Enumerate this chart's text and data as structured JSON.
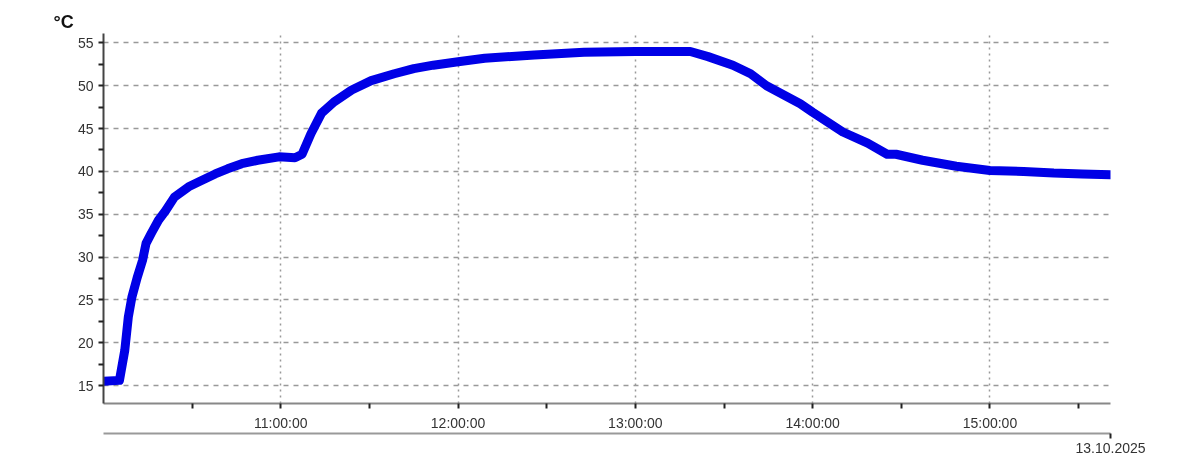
{
  "chart_data": {
    "type": "line",
    "ylabel": "°C",
    "annotations": [
      "13.10.2025"
    ],
    "x": [
      10.0,
      10.09,
      10.12,
      10.14,
      10.16,
      10.19,
      10.22,
      10.24,
      10.27,
      10.31,
      10.35,
      10.4,
      10.48,
      10.55,
      10.63,
      10.7,
      10.78,
      10.87,
      10.99,
      11.08,
      11.12,
      11.17,
      11.23,
      11.3,
      11.4,
      11.51,
      11.64,
      11.75,
      11.86,
      12.0,
      12.15,
      12.43,
      12.71,
      13.0,
      13.31,
      13.41,
      13.55,
      13.65,
      13.74,
      13.93,
      14.0,
      14.17,
      14.31,
      14.42,
      14.47,
      14.62,
      14.81,
      15.0,
      15.19,
      15.36,
      15.52,
      15.68
    ],
    "values": [
      15.5,
      15.6,
      19.1,
      23.0,
      25.3,
      27.6,
      29.6,
      31.6,
      32.8,
      34.3,
      35.4,
      37.0,
      38.2,
      38.9,
      39.7,
      40.3,
      40.9,
      41.3,
      41.7,
      41.6,
      42.0,
      44.4,
      46.8,
      48.1,
      49.5,
      50.6,
      51.4,
      52.0,
      52.4,
      52.8,
      53.2,
      53.6,
      53.9,
      54.0,
      54.0,
      53.4,
      52.4,
      51.4,
      50.0,
      47.9,
      46.9,
      44.6,
      43.3,
      42.0,
      42.0,
      41.3,
      40.6,
      40.1,
      40.0,
      39.8,
      39.7,
      39.6
    ],
    "color": "#0000e6",
    "xlim": [
      10.0,
      15.68
    ],
    "xticks": [
      {
        "value": 10.5,
        "label": null
      },
      {
        "value": 11,
        "label": "11:00:00"
      },
      {
        "value": 11.5,
        "label": null
      },
      {
        "value": 12,
        "label": "12:00:00"
      },
      {
        "value": 12.5,
        "label": null
      },
      {
        "value": 13,
        "label": "13:00:00"
      },
      {
        "value": 13.5,
        "label": null
      },
      {
        "value": 14,
        "label": "14:00:00"
      },
      {
        "value": 14.5,
        "label": null
      },
      {
        "value": 15,
        "label": "15:00:00"
      },
      {
        "value": 15.5,
        "label": null
      }
    ],
    "ylim": [
      12.9,
      56.1
    ],
    "yticks": [
      15,
      {
        "value": 17.5,
        "label": null
      },
      20,
      {
        "value": 22.5,
        "label": null
      },
      25,
      {
        "value": 27.5,
        "label": null
      },
      30,
      {
        "value": 32.5,
        "label": null
      },
      35,
      {
        "value": 37.5,
        "label": null
      },
      40,
      {
        "value": 42.5,
        "label": null
      },
      45,
      {
        "value": 47.5,
        "label": null
      },
      50,
      {
        "value": 52.5,
        "label": null
      },
      55
    ],
    "grid": true
  }
}
